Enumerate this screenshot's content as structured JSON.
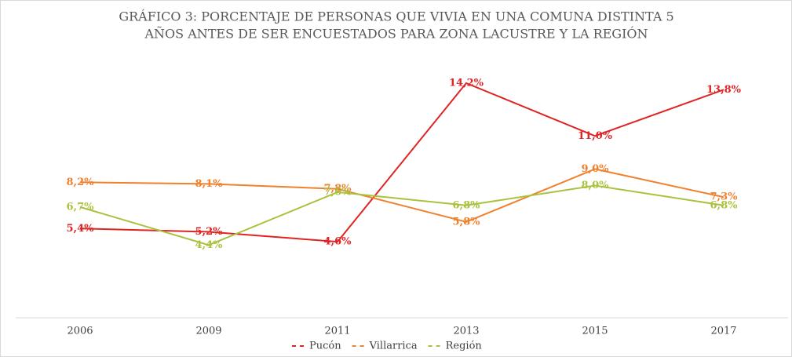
{
  "chart_data": {
    "type": "line",
    "title": [
      "GRÁFICO 3: PORCENTAJE DE PERSONAS QUE VIVIA EN UNA COMUNA DISTINTA 5",
      "AÑOS ANTES DE SER ENCUESTADOS PARA ZONA LACUSTRE Y LA REGIÓN"
    ],
    "categories": [
      "2006",
      "2009",
      "2011",
      "2013",
      "2015",
      "2017"
    ],
    "ylim": [
      0,
      16
    ],
    "series": [
      {
        "name": "Pucón",
        "color": "#e02424",
        "values": [
          5.4,
          5.2,
          4.6,
          14.2,
          11.0,
          13.8
        ],
        "value_labels": [
          "5,4%",
          "5,2%",
          "4,6%",
          "14,2%",
          "11,0%",
          "13,8%"
        ]
      },
      {
        "name": "Villarrica",
        "color": "#f0812e",
        "values": [
          8.2,
          8.1,
          7.8,
          5.8,
          9.0,
          7.3
        ],
        "value_labels": [
          "8,2%",
          "8,1%",
          "7,8%",
          "5,8%",
          "9,0%",
          "7,3%"
        ]
      },
      {
        "name": "Región",
        "color": "#a9c23f",
        "values": [
          6.7,
          4.4,
          7.6,
          6.8,
          8.0,
          6.8
        ],
        "value_labels": [
          "6,7%",
          "4,4%",
          "7,6%",
          "6,8%",
          "8,0%",
          "6,8%"
        ]
      }
    ]
  }
}
